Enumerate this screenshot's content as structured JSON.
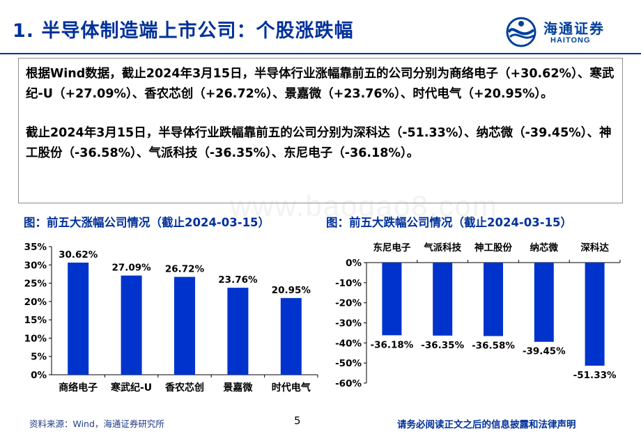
{
  "header": {
    "title": "1. 半导体制造端上市公司：个股涨跌幅",
    "logo_cn": "海通证券",
    "logo_en": "HAITONG"
  },
  "summary": {
    "p1": "根据Wind数据，截止2024年3月15日，半导体行业涨幅靠前五的公司分别为商络电子（+30.62%）、寒武纪-U（+27.09%）、香农芯创（+26.72%）、景嘉微（+23.76%）、时代电气（+20.95%）。",
    "p2": "截止2024年3月15日，半导体行业跌幅靠前五的公司分别为深科达（-51.33%）、纳芯微（-39.45%）、神工股份（-36.58%）、气派科技（-36.35%）、东尼电子（-36.18%）。"
  },
  "watermark": "www.baogao8.com",
  "figures": {
    "left_title": "图：前五大涨幅公司情况（截止2024-03-15）",
    "right_title": "图：前五大跌幅公司情况（截止2024-03-15）"
  },
  "colors": {
    "bar": "#0033cc",
    "title": "#00309a"
  },
  "chart_data": [
    {
      "type": "bar",
      "title": "图：前五大涨幅公司情况（截止2024-03-15）",
      "categories": [
        "商络电子",
        "寒武纪-U",
        "香农芯创",
        "景嘉微",
        "时代电气"
      ],
      "values": [
        30.62,
        27.09,
        26.72,
        23.76,
        20.95
      ],
      "data_labels": [
        "30.62%",
        "27.09%",
        "26.72%",
        "23.76%",
        "20.95%"
      ],
      "ylim": [
        0,
        35
      ],
      "yticks": [
        "0%",
        "5%",
        "10%",
        "15%",
        "20%",
        "25%",
        "30%",
        "35%"
      ],
      "grid": false,
      "legend": "none"
    },
    {
      "type": "bar",
      "title": "图：前五大跌幅公司情况（截止2024-03-15）",
      "categories": [
        "东尼电子",
        "气派科技",
        "神工股份",
        "纳芯微",
        "深科达"
      ],
      "values": [
        -36.18,
        -36.35,
        -36.58,
        -39.45,
        -51.33
      ],
      "data_labels": [
        "-36.18%",
        "-36.35%",
        "-36.58%",
        "-39.45%",
        "-51.33%"
      ],
      "ylim": [
        -60,
        0
      ],
      "yticks": [
        "0%",
        "-10%",
        "-20%",
        "-30%",
        "-40%",
        "-50%",
        "-60%"
      ],
      "grid": false,
      "legend": "none"
    }
  ],
  "footer": {
    "source": "资料来源：Wind，海通证券研究所",
    "page": "5",
    "disclaimer": "请务必阅读正文之后的信息披露和法律声明"
  }
}
